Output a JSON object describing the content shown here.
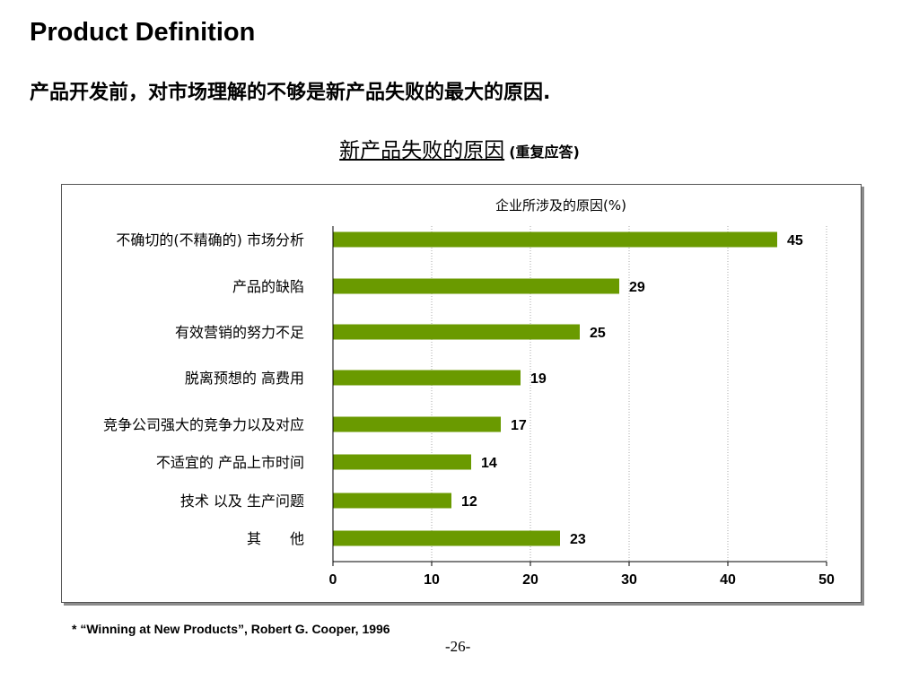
{
  "slide": {
    "title": "Product Definition",
    "subtitle": "产品开发前，对市场理解的不够是新产品失败的最大的原因.",
    "chart_heading": "新产品失败的原因",
    "chart_heading_note": "(重复应答)",
    "source": "* “Winning at New Products”, Robert G. Cooper, 1996",
    "page_number": "-26-"
  },
  "colors": {
    "bar": "#6a9a00",
    "grid": "#aaaaaa"
  },
  "chart_data": {
    "type": "bar",
    "orientation": "horizontal",
    "axis_title": "企业所涉及的原因(%)",
    "categories": [
      "不确切的(不精确的) 市场分析",
      "产品的缺陷",
      "有效营销的努力不足",
      "脱离预想的 高费用",
      "竞争公司强大的竞争力以及对应",
      "不适宜的 产品上市时间",
      "技术 以及 生产问题",
      "其　　他"
    ],
    "values": [
      45,
      29,
      25,
      19,
      17,
      14,
      12,
      23
    ],
    "xlim": [
      0,
      50
    ],
    "ticks": [
      0,
      10,
      20,
      30,
      40,
      50
    ],
    "grid": "vertical dotted"
  }
}
